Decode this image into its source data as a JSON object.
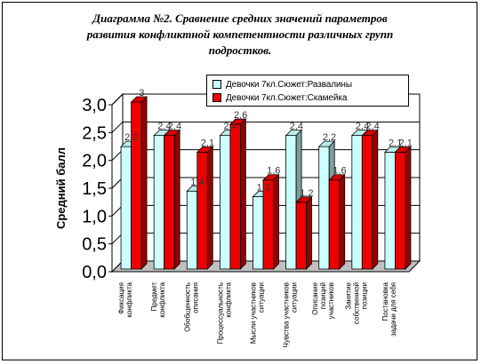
{
  "chart_data": {
    "type": "bar",
    "title": [
      "Диаграмма №2.   Сравнение средних значений параметров",
      "развития конфликтной компетентности различных групп",
      "подростков."
    ],
    "ylabel": "Средний балл",
    "xlabel": "",
    "ylim": [
      0,
      3
    ],
    "yticks": [
      "0,0",
      "0,5",
      "1,0",
      "1,5",
      "2,0",
      "2,5",
      "3,0"
    ],
    "ytick_values": [
      0,
      0.5,
      1,
      1.5,
      2,
      2.5,
      3
    ],
    "categories": [
      "Фиксация конфликта",
      "Предмет конфликта",
      "Обобщенность описания",
      "Процессуальность конфликта",
      "Мысли участников ситуации",
      "Чувства участников ситуации",
      "Описание позиций участников",
      "Занятие собственной позиции",
      "Постановка задачи для себя"
    ],
    "category_lines": [
      [
        "Фиксация",
        "конфликта"
      ],
      [
        "Предмет",
        "конфликта"
      ],
      [
        "Обобщенность",
        "описания"
      ],
      [
        "Процессуальность",
        "конфликта"
      ],
      [
        "Мысли участников",
        "ситуации"
      ],
      [
        "Чувства участников",
        "ситуации"
      ],
      [
        "Описание",
        "позиций",
        "участников"
      ],
      [
        "Занятие",
        "собственной",
        "позиции"
      ],
      [
        "Постановка",
        "задачи для себя"
      ]
    ],
    "series": [
      {
        "name": "Девочки 7кл.Сюжет:Развалины",
        "values": [
          2.2,
          2.4,
          1.4,
          2.4,
          1.3,
          2.4,
          2.2,
          2.4,
          2.1
        ],
        "labels": [
          "2,2",
          "2,4",
          "1,4",
          "2,4",
          "1,3",
          "2,4",
          "2,2",
          "2,4",
          "2,1"
        ],
        "color": "#ccffff"
      },
      {
        "name": "Девочки 7кл.Сюжет:Скамейка",
        "values": [
          3.0,
          2.4,
          2.1,
          2.6,
          1.6,
          1.2,
          1.6,
          2.4,
          2.1
        ],
        "labels": [
          "3",
          "2,4",
          "2,1",
          "2,6",
          "1,6",
          "1,2",
          "1,6",
          "2,4",
          "2,1"
        ],
        "color": "#ee0000"
      }
    ],
    "grid": true,
    "legend_position": "top-right",
    "colors": {
      "floor": "#c0c0c0",
      "grid": "#000000"
    }
  }
}
